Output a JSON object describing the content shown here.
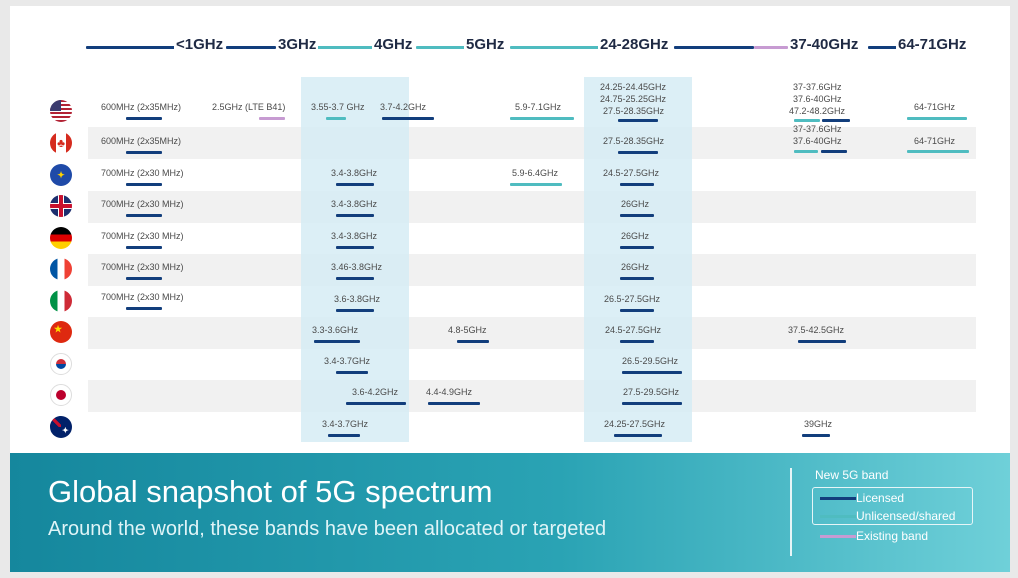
{
  "header_bands": [
    "<1GHz",
    "3GHz",
    "4GHz",
    "5GHz",
    "24-28GHz",
    "37-40GHz",
    "64-71GHz"
  ],
  "countries": [
    {
      "name": "United States",
      "flag_icon": "us-flag-icon"
    },
    {
      "name": "Canada",
      "flag_icon": "canada-flag-icon"
    },
    {
      "name": "European Union",
      "flag_icon": "eu-flag-icon"
    },
    {
      "name": "United Kingdom",
      "flag_icon": "uk-flag-icon"
    },
    {
      "name": "Germany",
      "flag_icon": "germany-flag-icon"
    },
    {
      "name": "France",
      "flag_icon": "france-flag-icon"
    },
    {
      "name": "Italy",
      "flag_icon": "italy-flag-icon"
    },
    {
      "name": "China",
      "flag_icon": "china-flag-icon"
    },
    {
      "name": "South Korea",
      "flag_icon": "south-korea-flag-icon"
    },
    {
      "name": "Japan",
      "flag_icon": "japan-flag-icon"
    },
    {
      "name": "Australia",
      "flag_icon": "australia-flag-icon"
    }
  ],
  "labels": {
    "us_600": "600MHz (2x35MHz)",
    "us_25": "2.5GHz (LTE B41)",
    "us_355": "3.55-3.7 GHz",
    "us_37": "3.7-4.2GHz",
    "us_59": "5.9-7.1GHz",
    "us_2425": "24.25-24.45GHz",
    "us_2475": "24.75-25.25GHz",
    "us_275": "27.5-28.35GHz",
    "us_376": "37-37.6GHz",
    "us_3764": "37.6-40GHz",
    "us_472": "47.2-48.2GHz",
    "us_64": "64-71GHz",
    "ca_600": "600MHz (2x35MHz)",
    "ca_275": "27.5-28.35GHz",
    "ca_376": "37-37.6GHz",
    "ca_3764": "37.6-40GHz",
    "ca_64": "64-71GHz",
    "eu_700": "700MHz (2x30 MHz)",
    "eu_34": "3.4-3.8GHz",
    "eu_59": "5.9-6.4GHz",
    "eu_245": "24.5-27.5GHz",
    "uk_700": "700MHz (2x30 MHz)",
    "uk_34": "3.4-3.8GHz",
    "uk_26": "26GHz",
    "de_700": "700MHz (2x30 MHz)",
    "de_34": "3.4-3.8GHz",
    "de_26": "26GHz",
    "fr_700": "700MHz (2x30 MHz)",
    "fr_346": "3.46-3.8GHz",
    "fr_26": "26GHz",
    "it_700": "700MHz (2x30 MHz)",
    "it_36": "3.6-3.8GHz",
    "it_265": "26.5-27.5GHz",
    "cn_33": "3.3-3.6GHz",
    "cn_48": "4.8-5GHz",
    "cn_245": "24.5-27.5GHz",
    "cn_375": "37.5-42.5GHz",
    "kr_34": "3.4-3.7GHz",
    "kr_265": "26.5-29.5GHz",
    "jp_36": "3.6-4.2GHz",
    "jp_44": "4.4-4.9GHz",
    "jp_275": "27.5-29.5GHz",
    "au_34": "3.4-3.7GHz",
    "au_2425": "24.25-27.5GHz",
    "au_39": "39GHz"
  },
  "banner": {
    "title": "Global snapshot of 5G spectrum",
    "subtitle": "Around the world, these bands have been allocated or targeted"
  },
  "legend": {
    "heading": "New 5G band",
    "licensed": "Licensed",
    "unlicensed": "Unlicensed/shared",
    "existing": "Existing band"
  },
  "colors": {
    "licensed": "#123e7c",
    "unlicensed": "#4fbcc0",
    "existing": "#c79bd2",
    "banner": "#1a8fa4"
  }
}
